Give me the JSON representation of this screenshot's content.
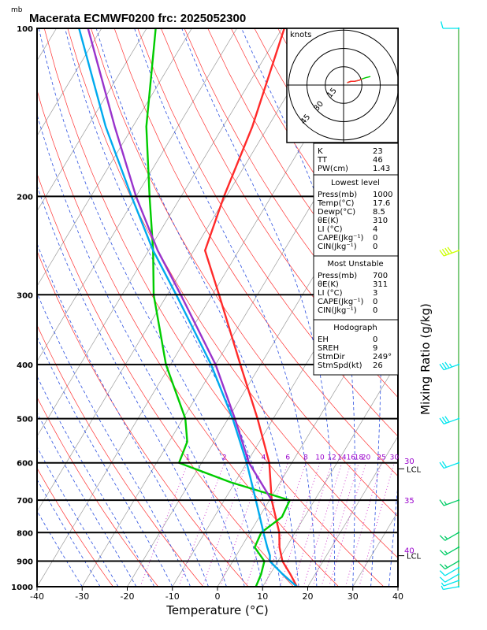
{
  "header": {
    "title": "Macerata ECMWF0200  frc: 2025052300",
    "pressure_unit": "mb"
  },
  "chart_data": {
    "type": "line",
    "chart_kind": "skew-T log-P sounding diagram",
    "xlabel": "Temperature (°C)",
    "ylabel": "",
    "right_label": "Mixing Ratio  (g/kg)",
    "xlim": [
      -40,
      40
    ],
    "ylim": [
      1000,
      100
    ],
    "y_scale": "log-pressure",
    "x_ticks": [
      -40,
      -30,
      -20,
      -10,
      0,
      10,
      20,
      30,
      40
    ],
    "y_ticks": [
      100,
      200,
      300,
      400,
      500,
      600,
      700,
      800,
      900,
      1000
    ],
    "mixing_ratio_labels": [
      "1",
      "2",
      "3",
      "4",
      "6",
      "8",
      "10",
      "12",
      "14",
      "16",
      "18",
      "20",
      "25",
      "30"
    ],
    "theta_e_labels": [
      "30",
      "35",
      "40"
    ],
    "lcl_label": "LCL",
    "series": [
      {
        "name": "",
        "role": "temperature",
        "color": "#ff2a2a",
        "points": [
          [
            1000,
            17.6
          ],
          [
            950,
            14.5
          ],
          [
            900,
            11.0
          ],
          [
            850,
            8.5
          ],
          [
            800,
            6.5
          ],
          [
            700,
            0.5
          ],
          [
            600,
            -5.0
          ],
          [
            500,
            -13.5
          ],
          [
            400,
            -24.5
          ],
          [
            300,
            -38.5
          ],
          [
            250,
            -47.5
          ],
          [
            200,
            -50.5
          ],
          [
            150,
            -53.5
          ],
          [
            100,
            -59.5
          ]
        ]
      },
      {
        "name": "",
        "role": "dewpoint",
        "color": "#00cc00",
        "points": [
          [
            1000,
            8.5
          ],
          [
            950,
            8.0
          ],
          [
            900,
            7.0
          ],
          [
            850,
            3.0
          ],
          [
            800,
            2.5
          ],
          [
            750,
            5.0
          ],
          [
            700,
            4.5
          ],
          [
            650,
            -11.0
          ],
          [
            600,
            -25.0
          ],
          [
            550,
            -26.0
          ],
          [
            500,
            -29.5
          ],
          [
            400,
            -41.0
          ],
          [
            300,
            -53.0
          ],
          [
            250,
            -59.0
          ],
          [
            200,
            -67.0
          ],
          [
            150,
            -77.0
          ],
          [
            100,
            -88.0
          ]
        ]
      },
      {
        "name": "",
        "role": "parcel-lowest",
        "color": "#00aaee",
        "points": [
          [
            1000,
            17.6
          ],
          [
            950,
            12.8
          ],
          [
            900,
            8.2
          ],
          [
            880,
            7.5
          ],
          [
            850,
            5.8
          ],
          [
            800,
            3.0
          ],
          [
            700,
            -3.0
          ],
          [
            600,
            -10.0
          ],
          [
            500,
            -19.0
          ],
          [
            400,
            -31.0
          ],
          [
            300,
            -48.0
          ],
          [
            250,
            -59.0
          ],
          [
            200,
            -71.0
          ],
          [
            150,
            -86.0
          ],
          [
            100,
            -105.0
          ]
        ]
      },
      {
        "name": "",
        "role": "parcel-most-unstable",
        "color": "#9933cc",
        "points": [
          [
            700,
            0.5
          ],
          [
            600,
            -9.5
          ],
          [
            500,
            -18.5
          ],
          [
            400,
            -30.0
          ],
          [
            300,
            -47.0
          ],
          [
            250,
            -58.0
          ],
          [
            200,
            -70.0
          ],
          [
            150,
            -84.0
          ],
          [
            100,
            -103.0
          ]
        ]
      }
    ],
    "wind_barbs": [
      {
        "pressure": 1000,
        "dir": 260,
        "kt": 5
      },
      {
        "pressure": 975,
        "dir": 250,
        "kt": 5
      },
      {
        "pressure": 950,
        "dir": 240,
        "kt": 10
      },
      {
        "pressure": 925,
        "dir": 240,
        "kt": 10
      },
      {
        "pressure": 900,
        "dir": 240,
        "kt": 15
      },
      {
        "pressure": 850,
        "dir": 240,
        "kt": 15
      },
      {
        "pressure": 800,
        "dir": 240,
        "kt": 15
      },
      {
        "pressure": 700,
        "dir": 250,
        "kt": 15
      },
      {
        "pressure": 600,
        "dir": 250,
        "kt": 20
      },
      {
        "pressure": 500,
        "dir": 250,
        "kt": 30
      },
      {
        "pressure": 400,
        "dir": 250,
        "kt": 35
      },
      {
        "pressure": 250,
        "dir": 250,
        "kt": 40
      },
      {
        "pressure": 100,
        "dir": 270,
        "kt": 10
      }
    ],
    "barb_colors": {
      "low": "#00e5ee",
      "mid": "#00cc66",
      "high": "#ccff00",
      "top": "#00e5ee"
    },
    "hodograph": {
      "unit_label": "knots",
      "ring_labels": [
        "15",
        "30",
        "45"
      ],
      "ring_speeds": [
        15,
        30,
        45
      ],
      "points": [
        [
          -3,
          -2
        ],
        [
          -6,
          -3
        ],
        [
          -9,
          -3
        ],
        [
          -13,
          -4
        ],
        [
          -15,
          -5
        ],
        [
          -18,
          -6
        ],
        [
          -22,
          -7
        ]
      ]
    }
  },
  "indices": {
    "general": [
      {
        "label": "K",
        "value": "23"
      },
      {
        "label": "TT",
        "value": "46"
      },
      {
        "label": "PW(cm)",
        "value": "1.43"
      }
    ],
    "lowest_level": {
      "title": "Lowest level",
      "rows": [
        {
          "label": "Press(mb)",
          "value": "1000"
        },
        {
          "label": "Temp(°C)",
          "value": "17.6"
        },
        {
          "label": "Dewp(°C)",
          "value": "8.5"
        },
        {
          "label": "θE(K)",
          "value": "310"
        },
        {
          "label": "LI (°C)",
          "value": "4"
        },
        {
          "label": "CAPE(Jkg⁻¹)",
          "value": "0"
        },
        {
          "label": "CIN(Jkg⁻¹)",
          "value": "0"
        }
      ]
    },
    "most_unstable": {
      "title": "Most Unstable",
      "rows": [
        {
          "label": "Press(mb)",
          "value": "700"
        },
        {
          "label": "θE(K)",
          "value": "311"
        },
        {
          "label": "LI (°C)",
          "value": "3"
        },
        {
          "label": "CAPE(Jkg⁻¹)",
          "value": "0"
        },
        {
          "label": "CIN(Jkg⁻¹)",
          "value": "0"
        }
      ]
    },
    "hodograph_box": {
      "title": "Hodograph",
      "rows": [
        {
          "label": "EH",
          "value": "0"
        },
        {
          "label": "SREH",
          "value": "9"
        },
        {
          "label": "StmDir",
          "value": "249°"
        },
        {
          "label": "StmSpd(kt)",
          "value": "26"
        }
      ]
    }
  }
}
